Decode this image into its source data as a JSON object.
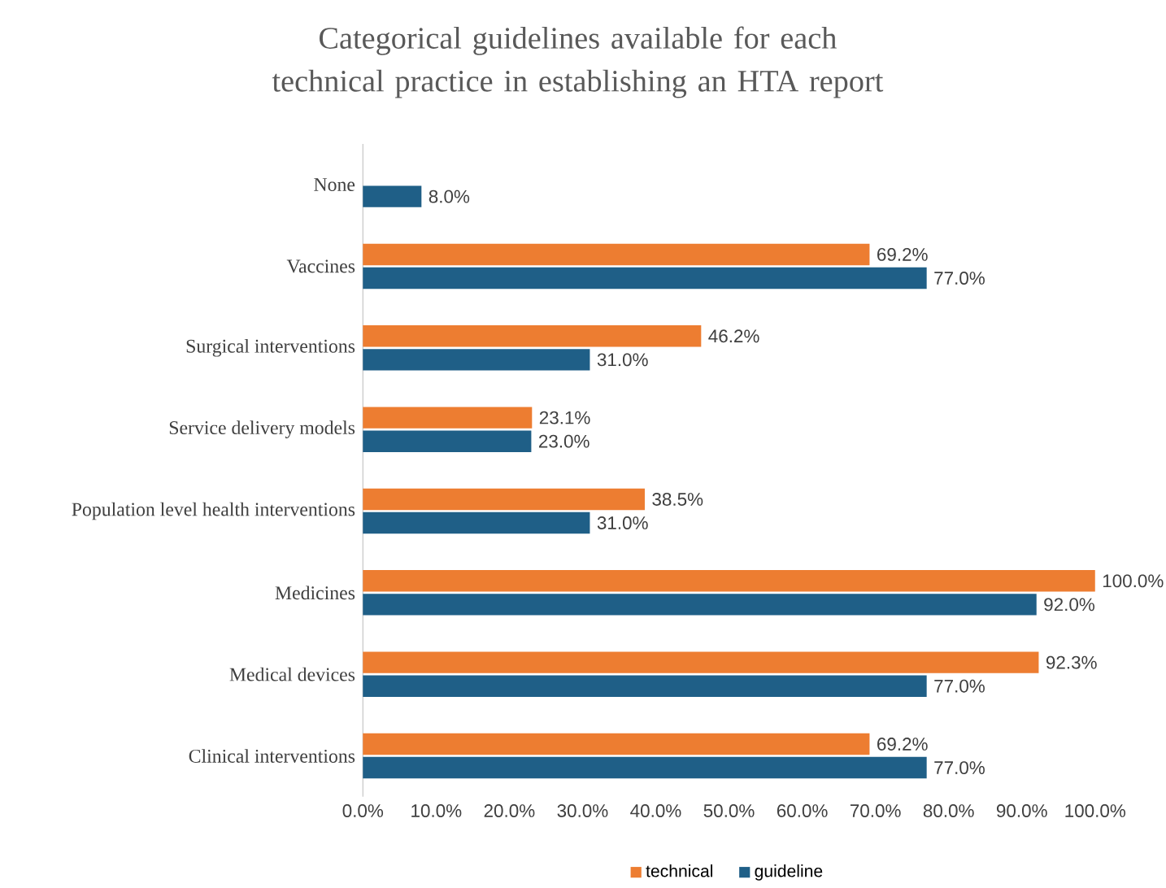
{
  "chart_data": {
    "type": "bar",
    "orientation": "horizontal",
    "title": "Categorical guidelines available for each technical practice in establishing an HTA report",
    "categories": [
      "None",
      "Vaccines",
      "Surgical interventions",
      "Service delivery models",
      "Population level health interventions",
      "Medicines",
      "Medical devices",
      "Clinical interventions"
    ],
    "series": [
      {
        "name": "technical",
        "color": "#ed7d31",
        "values": [
          null,
          69.2,
          46.2,
          23.1,
          38.5,
          100.0,
          92.3,
          69.2
        ],
        "value_labels": [
          null,
          "69.2%",
          "46.2%",
          "23.1%",
          "38.5%",
          "100.0%",
          "92.3%",
          "69.2%"
        ]
      },
      {
        "name": "guideline",
        "color": "#1f5f87",
        "values": [
          8.0,
          77.0,
          31.0,
          23.0,
          31.0,
          92.0,
          77.0,
          77.0
        ],
        "value_labels": [
          "8.0%",
          "77.0%",
          "31.0%",
          "23.0%",
          "31.0%",
          "92.0%",
          "77.0%",
          "77.0%"
        ]
      }
    ],
    "xlim": [
      0,
      100
    ],
    "xticks": [
      {
        "value": 0,
        "label": "0.0%"
      },
      {
        "value": 10,
        "label": "10.0%"
      },
      {
        "value": 20,
        "label": "20.0%"
      },
      {
        "value": 30,
        "label": "30.0%"
      },
      {
        "value": 40,
        "label": "40.0%"
      },
      {
        "value": 50,
        "label": "50.0%"
      },
      {
        "value": 60,
        "label": "60.0%"
      },
      {
        "value": 70,
        "label": "70.0%"
      },
      {
        "value": 80,
        "label": "80.0%"
      },
      {
        "value": 90,
        "label": "90.0%"
      },
      {
        "value": 100,
        "label": "100.0%"
      }
    ],
    "legend": "bottom"
  }
}
